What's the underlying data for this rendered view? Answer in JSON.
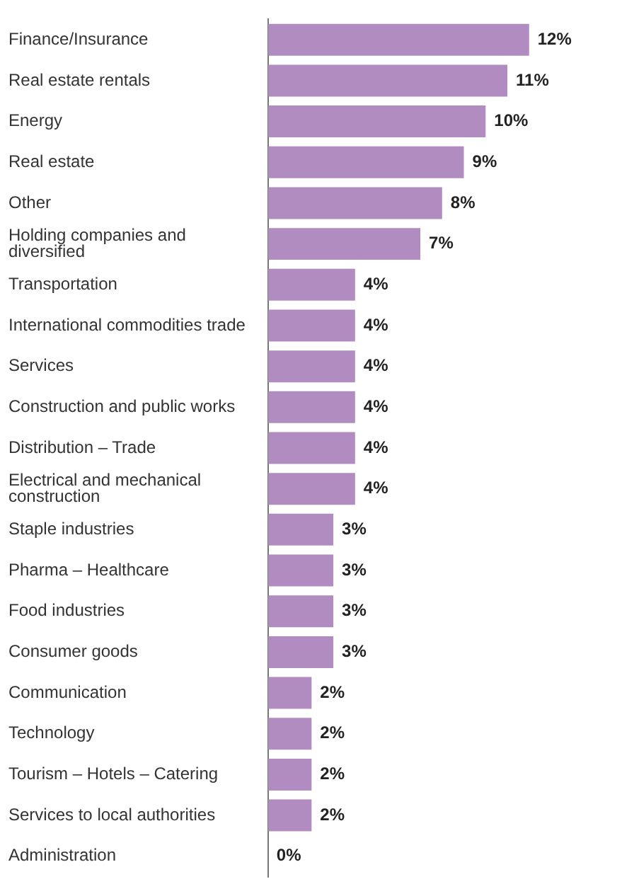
{
  "chart_data": {
    "type": "bar",
    "orientation": "horizontal",
    "categories": [
      "Finance/Insurance",
      "Real estate rentals",
      "Energy",
      "Real estate",
      "Other",
      "Holding companies and diversified",
      "Transportation",
      "International commodities trade",
      "Services",
      "Construction and public works",
      "Distribution – Trade",
      "Electrical and mechanical construction",
      "Staple industries",
      "Pharma – Healthcare",
      "Food industries",
      "Consumer goods",
      "Communication",
      "Technology",
      "Tourism – Hotels – Catering",
      "Services to local authorities",
      "Administration"
    ],
    "values": [
      12,
      11,
      10,
      9,
      8,
      7,
      4,
      4,
      4,
      4,
      4,
      4,
      3,
      3,
      3,
      3,
      2,
      2,
      2,
      2,
      0
    ],
    "value_labels": [
      "12%",
      "11%",
      "10%",
      "9%",
      "8%",
      "7%",
      "4%",
      "4%",
      "4%",
      "4%",
      "4%",
      "4%",
      "3%",
      "3%",
      "3%",
      "3%",
      "2%",
      "2%",
      "2%",
      "2%",
      "0%"
    ],
    "color": "#b08cc0",
    "tick_labels": "y",
    "grid": false,
    "legend": false
  }
}
